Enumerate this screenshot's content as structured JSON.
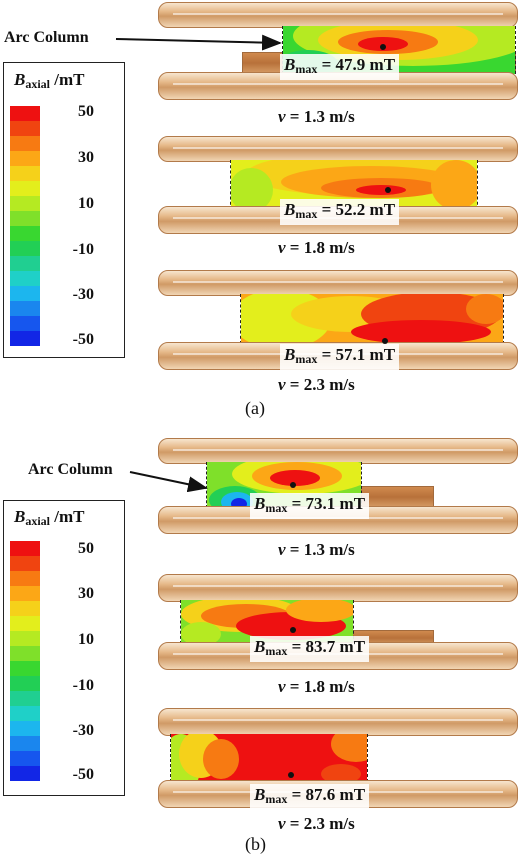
{
  "panels": [
    {
      "caption": "(a)",
      "arc_label": "Arc Column",
      "legend": {
        "title_symbol": "B",
        "title_subscript": "axial",
        "title_unit": " /mT",
        "ticks": [
          "50",
          "30",
          "10",
          "-10",
          "-30",
          "-50"
        ]
      },
      "cases": [
        {
          "bmax_symbol": "B",
          "bmax_subscript": "max",
          "bmax_value": " = 47.9 mT",
          "v_symbol": "v",
          "v_value": " = 1.3 m/s"
        },
        {
          "bmax_symbol": "B",
          "bmax_subscript": "max",
          "bmax_value": " = 52.2 mT",
          "v_symbol": "v",
          "v_value": " = 1.8 m/s"
        },
        {
          "bmax_symbol": "B",
          "bmax_subscript": "max",
          "bmax_value": " = 57.1 mT",
          "v_symbol": "v",
          "v_value": " = 2.3 m/s"
        }
      ]
    },
    {
      "caption": "(b)",
      "arc_label": "Arc Column",
      "legend": {
        "title_symbol": "B",
        "title_subscript": "axial",
        "title_unit": " /mT",
        "ticks": [
          "50",
          "30",
          "10",
          "-10",
          "-30",
          "-50"
        ]
      },
      "cases": [
        {
          "bmax_symbol": "B",
          "bmax_subscript": "max",
          "bmax_value": " = 73.1 mT",
          "v_symbol": "v",
          "v_value": " = 1.3 m/s"
        },
        {
          "bmax_symbol": "B",
          "bmax_subscript": "max",
          "bmax_value": " = 83.7 mT",
          "v_symbol": "v",
          "v_value": " = 1.8 m/s"
        },
        {
          "bmax_symbol": "B",
          "bmax_subscript": "max",
          "bmax_value": " = 87.6 mT",
          "v_symbol": "v",
          "v_value": " = 2.3 m/s"
        }
      ]
    }
  ],
  "colors": {
    "scale": [
      "#ee1111",
      "#f04410",
      "#f77a12",
      "#fca716",
      "#f5d11a",
      "#e3ee1c",
      "#b5ea22",
      "#7fe02a",
      "#39d730",
      "#22cf55",
      "#20cf91",
      "#1fd0c8",
      "#1cb6ee",
      "#1a86ee",
      "#1656ee",
      "#1226e6"
    ],
    "electrode": "#e6b989",
    "arc_outline": "#222222"
  }
}
